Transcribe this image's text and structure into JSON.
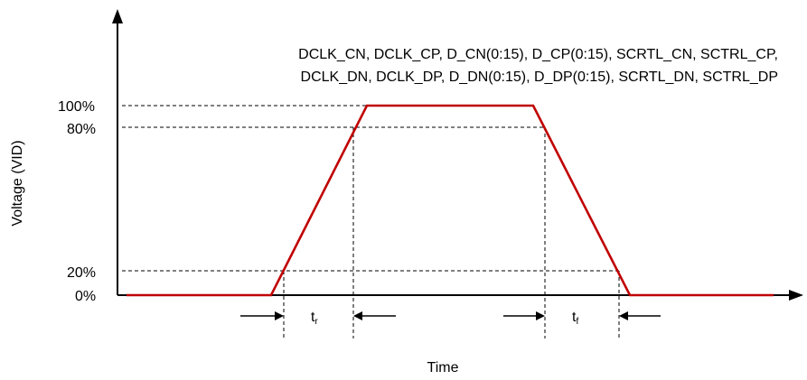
{
  "signals": {
    "line1": "DCLK_CN, DCLK_CP, D_CN(0:15), D_CP(0:15), SCRTL_CN, SCTRL_CP,",
    "line2": "DCLK_DN, DCLK_DP, D_DN(0:15), D_DP(0:15), SCRTL_DN, SCTRL_DP"
  },
  "axes": {
    "y_label": "Voltage (VID)",
    "x_label": "Time"
  },
  "levels": {
    "l100": "100%",
    "l80": "80%",
    "l20": "20%",
    "l0": "0%"
  },
  "timing": {
    "rise_main": "t",
    "rise_sub": "r",
    "fall_main": "t",
    "fall_sub": "f"
  },
  "colors": {
    "waveform": "#c00000",
    "axes": "#000000"
  }
}
